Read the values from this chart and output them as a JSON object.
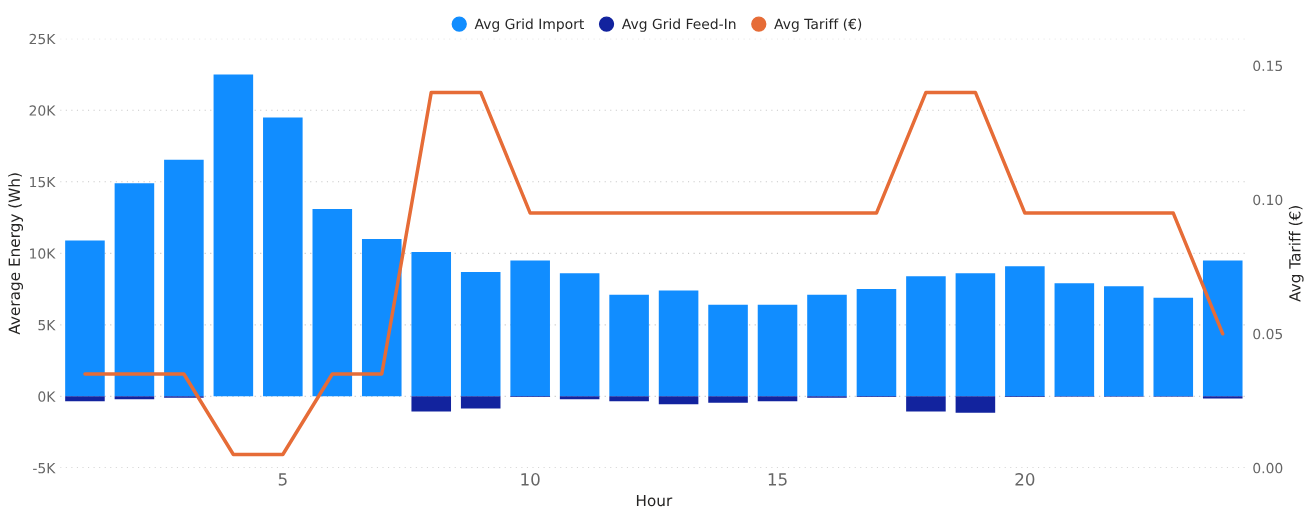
{
  "chart_data": {
    "type": "bar",
    "xlabel": "Hour",
    "ylabel": "Average Energy (Wh)",
    "y2label": "Avg Tariff (€)",
    "x": [
      1,
      2,
      3,
      4,
      5,
      6,
      7,
      8,
      9,
      10,
      11,
      12,
      13,
      14,
      15,
      16,
      17,
      18,
      19,
      20,
      21,
      22,
      23,
      24
    ],
    "series": [
      {
        "name": "Avg Grid Import",
        "color": "#118dff",
        "values": [
          10900,
          14900,
          16550,
          22500,
          19500,
          13100,
          11000,
          10100,
          8700,
          9500,
          8600,
          7100,
          7400,
          6400,
          6400,
          7100,
          7500,
          8400,
          8600,
          9100,
          7900,
          7700,
          6900,
          9500
        ]
      },
      {
        "name": "Avg Grid Feed-In",
        "color": "#12239e",
        "values": [
          -350,
          -200,
          -100,
          0,
          0,
          0,
          0,
          -1050,
          -850,
          -50,
          -200,
          -350,
          -550,
          -450,
          -350,
          -100,
          -50,
          -1050,
          -1150,
          -50,
          -20,
          -20,
          -20,
          -150
        ]
      },
      {
        "name": "Avg Tariff (€)",
        "color": "#e66c37",
        "type": "line",
        "axis": "y2",
        "values": [
          0.035,
          0.035,
          0.035,
          0.005,
          0.005,
          0.035,
          0.035,
          0.14,
          0.14,
          0.095,
          0.095,
          0.095,
          0.095,
          0.095,
          0.095,
          0.095,
          0.095,
          0.14,
          0.14,
          0.095,
          0.095,
          0.095,
          0.095,
          0.05
        ]
      }
    ],
    "xlim": [
      0.5,
      24.5
    ],
    "xticks": [
      5,
      10,
      15,
      20
    ],
    "ylim": [
      -5000,
      25000
    ],
    "yticks": [
      {
        "value": -5000,
        "label": "-5K"
      },
      {
        "value": 0,
        "label": "0K"
      },
      {
        "value": 5000,
        "label": "5K"
      },
      {
        "value": 10000,
        "label": "10K"
      },
      {
        "value": 15000,
        "label": "15K"
      },
      {
        "value": 20000,
        "label": "20K"
      },
      {
        "value": 25000,
        "label": "25K"
      }
    ],
    "y2lim": [
      0,
      0.16
    ],
    "y2ticks": [
      {
        "value": 0,
        "label": "0.00"
      },
      {
        "value": 0.05,
        "label": "0.05"
      },
      {
        "value": 0.1,
        "label": "0.10"
      },
      {
        "value": 0.15,
        "label": "0.15"
      }
    ],
    "stacked": true,
    "grid": "y",
    "legend": "top",
    "marker": "none",
    "line_style": "solid"
  }
}
